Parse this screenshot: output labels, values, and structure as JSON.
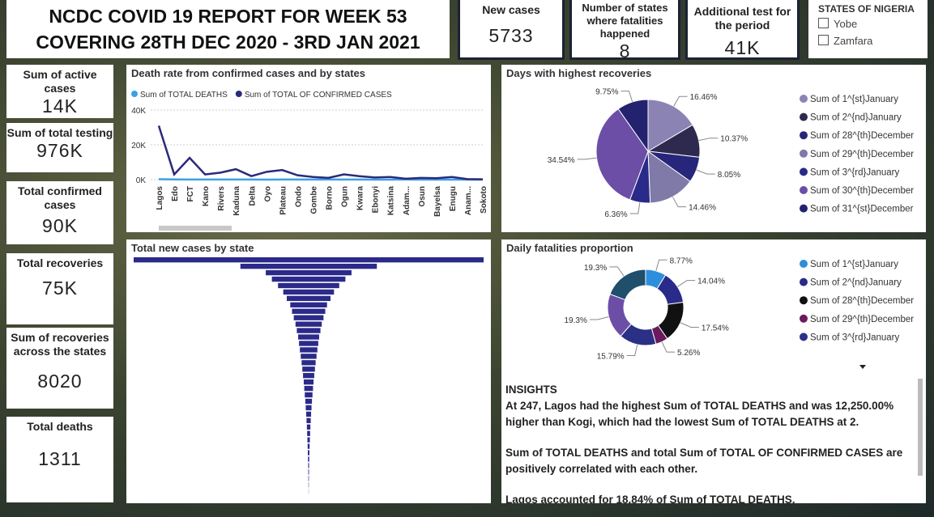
{
  "header": {
    "title_line1": "NCDC COVID 19 REPORT FOR WEEK 53",
    "title_line2": "COVERING 28TH DEC 2020 - 3RD JAN 2021"
  },
  "top_cards": [
    {
      "label": "New cases",
      "value": "5733"
    },
    {
      "label": "Number of states where fatalities happened",
      "value": "8"
    },
    {
      "label": "Additional test for the period",
      "value": "41K"
    }
  ],
  "slicer": {
    "title": "STATES OF NIGERIA",
    "items": [
      "Yobe",
      "Zamfara"
    ]
  },
  "side_cards": [
    {
      "label": "Sum of active cases",
      "value": "14K"
    },
    {
      "label": "Sum of total testing",
      "value": "976K"
    },
    {
      "label": "Total confirmed cases",
      "value": "90K"
    },
    {
      "label": "Total recoveries",
      "value": "75K"
    },
    {
      "label": "Sum of recoveries across the states",
      "value": "8020"
    },
    {
      "label": "Total deaths",
      "value": "1311"
    }
  ],
  "chart_data": [
    {
      "type": "line",
      "title": "Death rate from confirmed cases and by states",
      "categories": [
        "Lagos",
        "Edo",
        "FCT",
        "Kano",
        "Rivers",
        "Kaduna",
        "Delta",
        "Oyo",
        "Plateau",
        "Ondo",
        "Gombe",
        "Borno",
        "Ogun",
        "Kwara",
        "Ebonyi",
        "Katsina",
        "Adam...",
        "Osun",
        "Bayelsa",
        "Enugu",
        "Anam...",
        "Sokoto"
      ],
      "series": [
        {
          "name": "Sum of TOTAL DEATHS",
          "color": "#3aa0e8",
          "values": [
            247,
            120,
            80,
            60,
            60,
            50,
            50,
            20,
            40,
            30,
            30,
            30,
            30,
            30,
            20,
            20,
            30,
            20,
            20,
            20,
            20,
            20
          ]
        },
        {
          "name": "Sum of TOTAL OF CONFIRMED CASES",
          "color": "#2b2a7a",
          "values": [
            31000,
            3000,
            12500,
            3000,
            4000,
            6000,
            2000,
            4500,
            5500,
            2500,
            1500,
            1000,
            3000,
            2000,
            1200,
            1500,
            500,
            1000,
            800,
            1500,
            300,
            200
          ]
        }
      ],
      "ylim": [
        0,
        40000
      ],
      "yticks": [
        {
          "value": 0,
          "label": "0K"
        },
        {
          "value": 20000,
          "label": "20K"
        },
        {
          "value": 40000,
          "label": "40K"
        }
      ],
      "grid": true
    },
    {
      "type": "hbar",
      "title": "Total new cases by state",
      "color": "#2b2a8a",
      "categories": [
        null,
        null,
        null,
        null,
        null,
        null,
        null,
        null,
        null,
        null,
        null,
        null,
        null,
        null,
        null,
        null,
        null,
        null,
        null,
        null,
        null,
        null,
        null,
        null,
        null,
        null,
        null,
        null,
        null,
        null,
        null,
        null,
        null,
        null,
        null,
        null,
        null
      ],
      "values": [
        2000,
        780,
        490,
        420,
        350,
        290,
        250,
        210,
        190,
        170,
        150,
        135,
        120,
        110,
        100,
        90,
        80,
        72,
        64,
        56,
        50,
        44,
        38,
        33,
        28,
        24,
        20,
        17,
        14,
        11,
        9,
        7,
        5,
        4,
        3,
        2,
        1
      ]
    },
    {
      "type": "pie",
      "title": "Days with highest recoveries",
      "categories": [
        "Sum of 1^{st}January",
        "Sum of 2^{nd}January",
        "Sum of 28^{th}December",
        "Sum of 29^{th}December",
        "Sum of 3^{rd}January",
        "Sum of 30^{th}December",
        "Sum of 31^{st}December"
      ],
      "values": [
        16.46,
        10.37,
        8.05,
        14.46,
        6.36,
        34.54,
        9.75
      ],
      "value_labels": [
        "16.46%",
        "10.37%",
        "8.05%",
        "14.46%",
        "6.36%",
        "34.54%",
        "9.75%"
      ],
      "colors": [
        "#8a83b4",
        "#2e2a4f",
        "#27267a",
        "#7f7aa8",
        "#2a2a8a",
        "#6c4ea6",
        "#22226e"
      ]
    },
    {
      "type": "donut",
      "title": "Daily fatalities proportion",
      "categories": [
        "Sum of 1^{st}January",
        "Sum of 2^{nd}January",
        "Sum of 28^{th}December",
        "Sum of 29^{th}December",
        "Sum of 3^{rd}January",
        null,
        null
      ],
      "values": [
        8.77,
        14.04,
        17.54,
        5.26,
        15.79,
        19.3,
        19.3
      ],
      "value_labels": [
        "8.77%",
        "14.04%",
        "17.54%",
        "5.26%",
        "15.79%",
        "19.3%",
        "19.3%"
      ],
      "colors": [
        "#2d8fdc",
        "#2a2a8a",
        "#111111",
        "#6b1a5e",
        "#2b2f86",
        "#6c4ea6",
        "#1f4f6a"
      ]
    }
  ],
  "insights": {
    "title": "INSIGHTS",
    "paragraphs": [
      "At 247, Lagos had the highest Sum of TOTAL DEATHS and was 12,250.00% higher than Kogi, which had the lowest Sum of TOTAL DEATHS at 2.",
      "Sum of TOTAL DEATHS and total Sum of TOTAL OF CONFIRMED CASES are positively correlated with each other.",
      "Lagos accounted for 18.84% of Sum of TOTAL DEATHS."
    ]
  }
}
